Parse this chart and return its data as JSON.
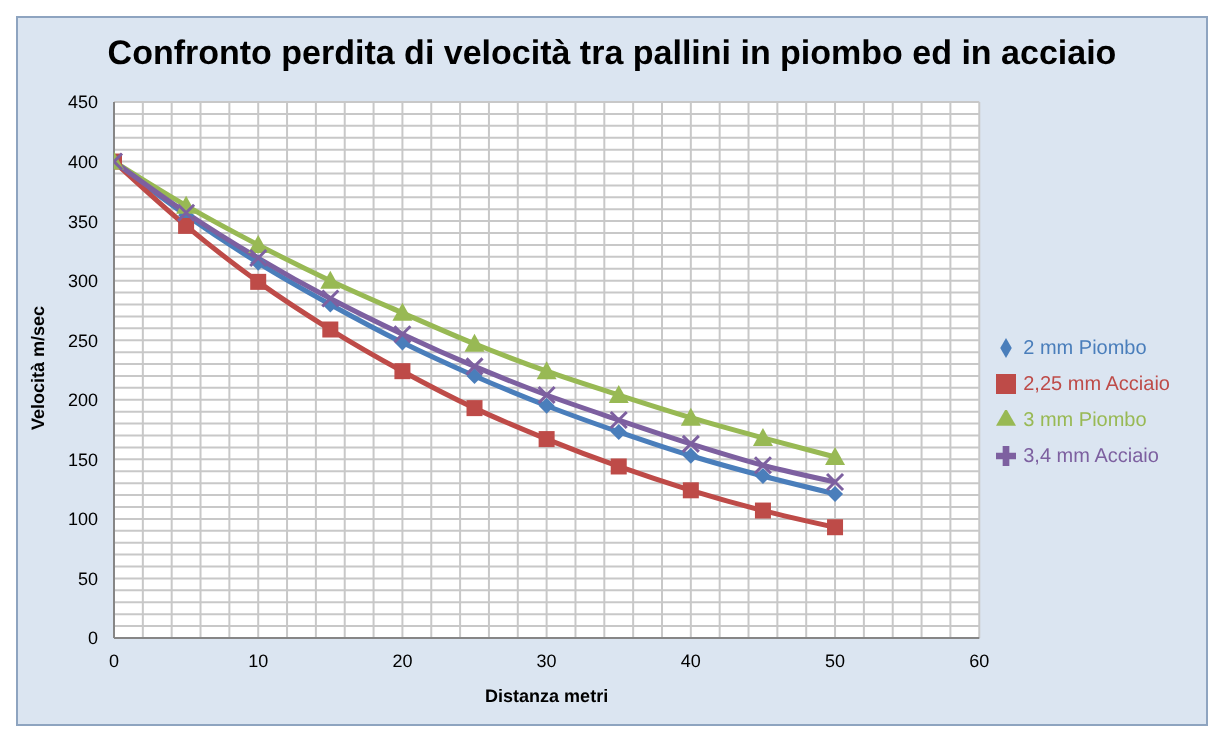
{
  "chart_data": {
    "type": "line",
    "title": "Confronto perdita di velocità tra pallini in piombo ed in acciaio",
    "xlabel": "Distanza metri",
    "ylabel": "Velocità m/sec",
    "x": [
      0,
      5,
      10,
      15,
      20,
      25,
      30,
      35,
      40,
      45,
      50
    ],
    "series": [
      {
        "name": "2 mm Piombo",
        "color": "#4a7ebb",
        "marker": "diamond",
        "values": [
          400,
          355,
          315,
          280,
          248,
          220,
          195,
          173,
          153,
          136,
          121
        ]
      },
      {
        "name": "2,25 mm Acciaio",
        "color": "#be4b48",
        "marker": "square",
        "values": [
          400,
          346,
          299,
          259,
          224,
          193,
          167,
          144,
          124,
          107,
          93
        ]
      },
      {
        "name": "3 mm Piombo",
        "color": "#98b954",
        "marker": "triangle",
        "values": [
          400,
          363,
          330,
          300,
          273,
          247,
          224,
          204,
          185,
          168,
          152
        ]
      },
      {
        "name": "3,4 mm Acciaio",
        "color": "#7d60a0",
        "marker": "cross",
        "values": [
          400,
          357,
          319,
          285,
          255,
          228,
          204,
          183,
          163,
          145,
          131
        ]
      }
    ],
    "xlim": [
      0,
      60
    ],
    "xticks": [
      0,
      {
        "value": 2,
        "label": null
      },
      {
        "value": 4,
        "label": null
      },
      {
        "value": 6,
        "label": null
      },
      {
        "value": 8,
        "label": null
      },
      10,
      {
        "value": 12,
        "label": null
      },
      {
        "value": 14,
        "label": null
      },
      {
        "value": 16,
        "label": null
      },
      {
        "value": 18,
        "label": null
      },
      20,
      {
        "value": 22,
        "label": null
      },
      {
        "value": 24,
        "label": null
      },
      {
        "value": 26,
        "label": null
      },
      {
        "value": 28,
        "label": null
      },
      30,
      {
        "value": 32,
        "label": null
      },
      {
        "value": 34,
        "label": null
      },
      {
        "value": 36,
        "label": null
      },
      {
        "value": 38,
        "label": null
      },
      40,
      {
        "value": 42,
        "label": null
      },
      {
        "value": 44,
        "label": null
      },
      {
        "value": 46,
        "label": null
      },
      {
        "value": 48,
        "label": null
      },
      50,
      {
        "value": 52,
        "label": null
      },
      {
        "value": 54,
        "label": null
      },
      {
        "value": 56,
        "label": null
      },
      {
        "value": 58,
        "label": null
      },
      60
    ],
    "ylim": [
      0,
      450
    ],
    "yticks": [
      0,
      {
        "value": 10,
        "label": null
      },
      {
        "value": 20,
        "label": null
      },
      {
        "value": 30,
        "label": null
      },
      {
        "value": 40,
        "label": null
      },
      50,
      {
        "value": 60,
        "label": null
      },
      {
        "value": 70,
        "label": null
      },
      {
        "value": 80,
        "label": null
      },
      {
        "value": 90,
        "label": null
      },
      100,
      {
        "value": 110,
        "label": null
      },
      {
        "value": 120,
        "label": null
      },
      {
        "value": 130,
        "label": null
      },
      {
        "value": 140,
        "label": null
      },
      150,
      {
        "value": 160,
        "label": null
      },
      {
        "value": 170,
        "label": null
      },
      {
        "value": 180,
        "label": null
      },
      {
        "value": 190,
        "label": null
      },
      200,
      {
        "value": 210,
        "label": null
      },
      {
        "value": 220,
        "label": null
      },
      {
        "value": 230,
        "label": null
      },
      {
        "value": 240,
        "label": null
      },
      250,
      {
        "value": 260,
        "label": null
      },
      {
        "value": 270,
        "label": null
      },
      {
        "value": 280,
        "label": null
      },
      {
        "value": 290,
        "label": null
      },
      300,
      {
        "value": 310,
        "label": null
      },
      {
        "value": 320,
        "label": null
      },
      {
        "value": 330,
        "label": null
      },
      {
        "value": 340,
        "label": null
      },
      350,
      {
        "value": 360,
        "label": null
      },
      {
        "value": 370,
        "label": null
      },
      {
        "value": 380,
        "label": null
      },
      {
        "value": 390,
        "label": null
      },
      400,
      {
        "value": 410,
        "label": null
      },
      {
        "value": 420,
        "label": null
      },
      {
        "value": 430,
        "label": null
      },
      {
        "value": 440,
        "label": null
      },
      450
    ],
    "grid": true,
    "legend": "right",
    "line_style": "solid"
  }
}
